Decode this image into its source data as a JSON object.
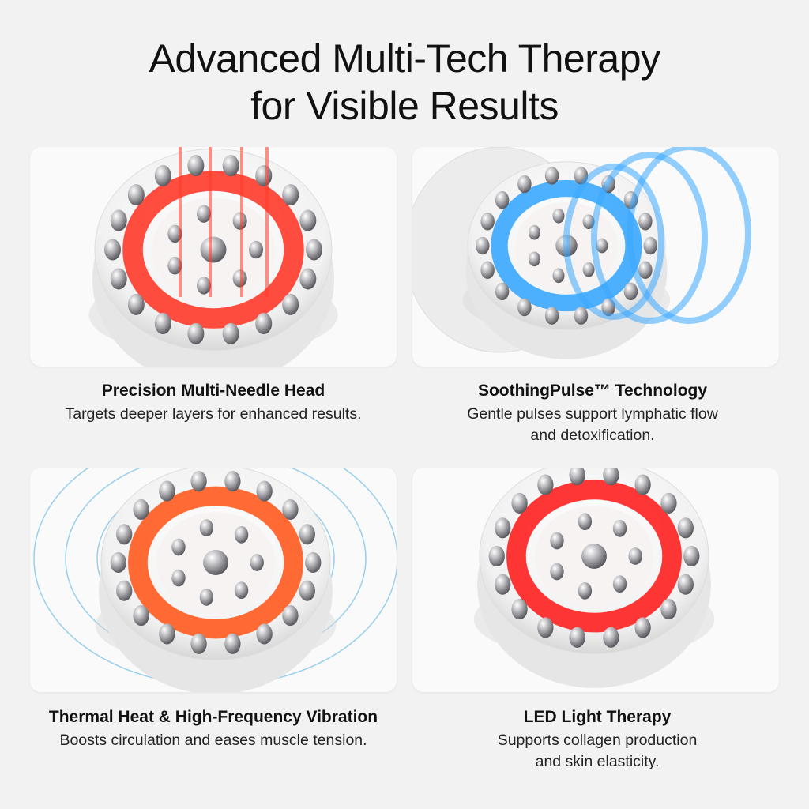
{
  "header": {
    "title_line1": "Advanced Multi-Tech Therapy",
    "title_line2": "for Visible Results"
  },
  "features": [
    {
      "heading": "Precision Multi-Needle Head",
      "description": "Targets deeper layers for enhanced results.",
      "accent": "#ff3b2a",
      "image": "device-red-light-beams"
    },
    {
      "heading": "SoothingPulse™ Technology",
      "description": "Gentle pulses support lymphatic flow\nand detoxification.",
      "accent": "#3aa8ff",
      "image": "device-blue-pulse-rings"
    },
    {
      "heading": "Thermal Heat & High-Frequency Vibration",
      "description": "Boosts circulation and eases muscle tension.",
      "accent": "#ff5a1f",
      "image": "device-heat-vibration-waves"
    },
    {
      "heading": "LED Light Therapy",
      "description": "Supports collagen production\nand skin elasticity.",
      "accent": "#ff2020",
      "image": "device-red-led-ring"
    }
  ]
}
